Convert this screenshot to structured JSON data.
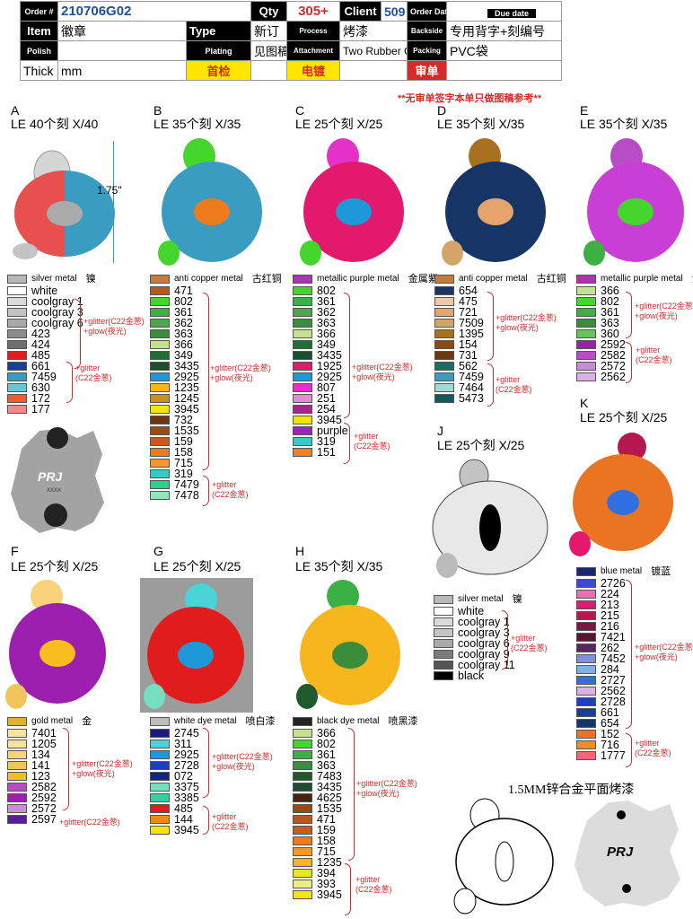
{
  "header": {
    "order_label": "Order #",
    "order_no": "210706G02",
    "qty_label": "Qty",
    "qty": "305+",
    "client_label": "Client",
    "client": "509",
    "order_date_label": "Order Date",
    "order_date": "",
    "due_date_label": "Due date",
    "due_date": "",
    "item_label": "Item",
    "item": "徽章",
    "type_label": "Type",
    "type": "新订",
    "process_label": "Process",
    "process": "烤漆",
    "backside_label": "Backside",
    "backside": "专用背字+刻编号",
    "polish_label": "Polish",
    "polish": "",
    "plating_label": "Plating",
    "plating": "见图稿说明",
    "attachment_label": "Attachment",
    "attachment": "Two Rubber Clutches黑帽",
    "packing_label": "Packing",
    "packing": "PVC袋",
    "thick_label": "Thick",
    "thick_unit": "mm",
    "first_check": "首检",
    "plating_check": "电镀",
    "review": "审单"
  },
  "note": "**无审单签字本单只做图稿参考**",
  "dimension": "1.75\"",
  "back": {
    "logo": "PRJ",
    "serial": "XXXX"
  },
  "drawing_caption": "1.5MM锌合金平面烤漆",
  "glitter_glow": "+glitter(C22金葱)",
  "glow": "+glow(夜光)",
  "glitter": "+glitter",
  "c22": "(C22金葱)",
  "sections": {
    "A": {
      "letter": "A",
      "title": "LE 40个刻 X/40",
      "metal": "silver metal",
      "metal_cn": "镍",
      "colors": [
        {
          "code": "white",
          "hex": "#ffffff"
        },
        {
          "code": "coolgray 1",
          "hex": "#dadada"
        },
        {
          "code": "coolgray 3",
          "hex": "#c4c4c4"
        },
        {
          "code": "coolgray 6",
          "hex": "#a9a9a9"
        },
        {
          "code": "423",
          "hex": "#8c8c8c"
        },
        {
          "code": "424",
          "hex": "#6f6f6f"
        },
        {
          "code": "485",
          "hex": "#e01c1c"
        },
        {
          "code": "661",
          "hex": "#173f9a"
        },
        {
          "code": "7459",
          "hex": "#3a9cc0"
        },
        {
          "code": "630",
          "hex": "#6fc3d8"
        },
        {
          "code": "172",
          "hex": "#f25c2a"
        },
        {
          "code": "177",
          "hex": "#f08a8a"
        }
      ]
    },
    "B": {
      "letter": "B",
      "title": "LE 35个刻 X/35",
      "metal": "anti copper metal",
      "metal_cn": "古红铜",
      "colors": [
        {
          "code": "471",
          "hex": "#b25a1f"
        },
        {
          "code": "802",
          "hex": "#44d62c"
        },
        {
          "code": "361",
          "hex": "#3cb043"
        },
        {
          "code": "362",
          "hex": "#4ca84a"
        },
        {
          "code": "363",
          "hex": "#3b8c3b"
        },
        {
          "code": "366",
          "hex": "#c3e38f"
        },
        {
          "code": "349",
          "hex": "#1f6e33"
        },
        {
          "code": "3435",
          "hex": "#1b4d2e"
        },
        {
          "code": "2925",
          "hex": "#1e98d6"
        },
        {
          "code": "1235",
          "hex": "#f7b51e"
        },
        {
          "code": "1245",
          "hex": "#c89418"
        },
        {
          "code": "3945",
          "hex": "#f3e500"
        },
        {
          "code": "732",
          "hex": "#6b3510"
        },
        {
          "code": "1535",
          "hex": "#9c4a0c"
        },
        {
          "code": "159",
          "hex": "#c9591e"
        },
        {
          "code": "158",
          "hex": "#ef7b1f"
        },
        {
          "code": "715",
          "hex": "#f7962b"
        },
        {
          "code": "319",
          "hex": "#35c9c7"
        },
        {
          "code": "7479",
          "hex": "#2ed08a"
        },
        {
          "code": "7478",
          "hex": "#8fe7b8"
        }
      ]
    },
    "C": {
      "letter": "C",
      "title": "LE 25个刻 X/25",
      "metal": "metallic purple metal",
      "metal_cn": "金属紫",
      "colors": [
        {
          "code": "802",
          "hex": "#44d62c"
        },
        {
          "code": "361",
          "hex": "#3cb043"
        },
        {
          "code": "362",
          "hex": "#4ca84a"
        },
        {
          "code": "363",
          "hex": "#3b8c3b"
        },
        {
          "code": "366",
          "hex": "#c3e38f"
        },
        {
          "code": "349",
          "hex": "#1f6e33"
        },
        {
          "code": "3435",
          "hex": "#1b4d2e"
        },
        {
          "code": "1925",
          "hex": "#e3196d"
        },
        {
          "code": "2925",
          "hex": "#1e98d6"
        },
        {
          "code": "807",
          "hex": "#e631c9"
        },
        {
          "code": "251",
          "hex": "#e58ad6"
        },
        {
          "code": "254",
          "hex": "#a6268f"
        },
        {
          "code": "3945",
          "hex": "#f3e500"
        },
        {
          "code": "purple",
          "hex": "#a020c0"
        },
        {
          "code": "319",
          "hex": "#35c9c7"
        },
        {
          "code": "151",
          "hex": "#f7801e"
        }
      ]
    },
    "D": {
      "letter": "D",
      "title": "LE 35个刻 X/35",
      "metal": "anti copper metal",
      "metal_cn": "古红铜",
      "colors": [
        {
          "code": "654",
          "hex": "#163566"
        },
        {
          "code": "475",
          "hex": "#f1c8a6"
        },
        {
          "code": "721",
          "hex": "#e5a46c"
        },
        {
          "code": "7509",
          "hex": "#d4a56a"
        },
        {
          "code": "1395",
          "hex": "#a8711f"
        },
        {
          "code": "154",
          "hex": "#8a4a13"
        },
        {
          "code": "731",
          "hex": "#6b3912"
        },
        {
          "code": "562",
          "hex": "#1b6b60"
        },
        {
          "code": "7459",
          "hex": "#3a9cc0"
        },
        {
          "code": "7464",
          "hex": "#9fd9cf"
        },
        {
          "code": "5473",
          "hex": "#0f5a60"
        }
      ]
    },
    "E": {
      "letter": "E",
      "title": "LE 35个刻 X/35",
      "metal": "metallic purple metal",
      "metal_cn": "金属紫",
      "colors": [
        {
          "code": "366",
          "hex": "#c3e38f"
        },
        {
          "code": "802",
          "hex": "#44d62c"
        },
        {
          "code": "361",
          "hex": "#3cb043"
        },
        {
          "code": "363",
          "hex": "#3b8c3b"
        },
        {
          "code": "360",
          "hex": "#64c55a"
        },
        {
          "code": "2592",
          "hex": "#9c1fb0"
        },
        {
          "code": "2582",
          "hex": "#b64dc5"
        },
        {
          "code": "2572",
          "hex": "#c98cd6"
        },
        {
          "code": "2562",
          "hex": "#dcb0e3"
        }
      ]
    },
    "F": {
      "letter": "F",
      "title": "LE 25个刻 X/25",
      "metal": "gold metal",
      "metal_cn": "金",
      "colors": [
        {
          "code": "7401",
          "hex": "#f8e3a3"
        },
        {
          "code": "1205",
          "hex": "#f7e39a"
        },
        {
          "code": "134",
          "hex": "#f8d37a"
        },
        {
          "code": "141",
          "hex": "#f2c55c"
        },
        {
          "code": "123",
          "hex": "#f7bd1e"
        },
        {
          "code": "2582",
          "hex": "#b64dc5"
        },
        {
          "code": "2592",
          "hex": "#9c1fb0"
        },
        {
          "code": "2572",
          "hex": "#c98cd6"
        },
        {
          "code": "2597",
          "hex": "#5b1d8f"
        }
      ]
    },
    "G": {
      "letter": "G",
      "title": "LE 25个刻 X/25",
      "metal": "white dye metal",
      "metal_cn": "喷白漆",
      "colors": [
        {
          "code": "2745",
          "hex": "#1e1a7a"
        },
        {
          "code": "311",
          "hex": "#4bd4d8"
        },
        {
          "code": "2925",
          "hex": "#1e98d6"
        },
        {
          "code": "2728",
          "hex": "#1c3fc2"
        },
        {
          "code": "072",
          "hex": "#14238a"
        },
        {
          "code": "3375",
          "hex": "#74dfc1"
        },
        {
          "code": "3385",
          "hex": "#38cf9f"
        },
        {
          "code": "485",
          "hex": "#e01c1c"
        },
        {
          "code": "144",
          "hex": "#f08a1a"
        },
        {
          "code": "3945",
          "hex": "#f3e500"
        }
      ]
    },
    "H": {
      "letter": "H",
      "title": "LE 35个刻 X/35",
      "metal": "black dye metal",
      "metal_cn": "喷黑漆",
      "colors": [
        {
          "code": "366",
          "hex": "#c3e38f"
        },
        {
          "code": "802",
          "hex": "#44d62c"
        },
        {
          "code": "361",
          "hex": "#3cb043"
        },
        {
          "code": "363",
          "hex": "#3b8c3b"
        },
        {
          "code": "7483",
          "hex": "#1f5a2c"
        },
        {
          "code": "3435",
          "hex": "#1b4d2e"
        },
        {
          "code": "4625",
          "hex": "#4a2310"
        },
        {
          "code": "1535",
          "hex": "#9c4a0c"
        },
        {
          "code": "471",
          "hex": "#b25a1f"
        },
        {
          "code": "159",
          "hex": "#c9591e"
        },
        {
          "code": "158",
          "hex": "#ef7b1f"
        },
        {
          "code": "715",
          "hex": "#f7962b"
        },
        {
          "code": "1235",
          "hex": "#f7b51e"
        },
        {
          "code": "394",
          "hex": "#e6e62a"
        },
        {
          "code": "393",
          "hex": "#eeee7a"
        },
        {
          "code": "3945",
          "hex": "#f3e500"
        }
      ]
    },
    "J": {
      "letter": "J",
      "title": "LE 25个刻 X/25",
      "metal": "silver metal",
      "metal_cn": "镍",
      "colors": [
        {
          "code": "white",
          "hex": "#ffffff"
        },
        {
          "code": "coolgray 1",
          "hex": "#dadada"
        },
        {
          "code": "coolgray 3",
          "hex": "#c4c4c4"
        },
        {
          "code": "coolgray 6",
          "hex": "#a9a9a9"
        },
        {
          "code": "coolgray 9",
          "hex": "#7c7c7c"
        },
        {
          "code": "coolgray 11",
          "hex": "#555555"
        },
        {
          "code": "black",
          "hex": "#000000"
        }
      ]
    },
    "K": {
      "letter": "K",
      "title": "LE 25个刻 X/25",
      "metal": "blue metal",
      "metal_cn": "镀蓝",
      "colors": [
        {
          "code": "2726",
          "hex": "#3a4bd0"
        },
        {
          "code": "224",
          "hex": "#ee6fb1"
        },
        {
          "code": "213",
          "hex": "#e3196d"
        },
        {
          "code": "215",
          "hex": "#b4184e"
        },
        {
          "code": "216",
          "hex": "#7d1640"
        },
        {
          "code": "7421",
          "hex": "#5e1430"
        },
        {
          "code": "262",
          "hex": "#5a2560"
        },
        {
          "code": "7452",
          "hex": "#7f8fe0"
        },
        {
          "code": "284",
          "hex": "#7fb0e6"
        },
        {
          "code": "2727",
          "hex": "#2f6fe0"
        },
        {
          "code": "2562",
          "hex": "#dcb0e3"
        },
        {
          "code": "2728",
          "hex": "#1c3fc2"
        },
        {
          "code": "661",
          "hex": "#173f9a"
        },
        {
          "code": "654",
          "hex": "#163566"
        },
        {
          "code": "152",
          "hex": "#ea7422"
        },
        {
          "code": "716",
          "hex": "#f28a2a"
        },
        {
          "code": "1777",
          "hex": "#f2677a"
        }
      ]
    }
  }
}
